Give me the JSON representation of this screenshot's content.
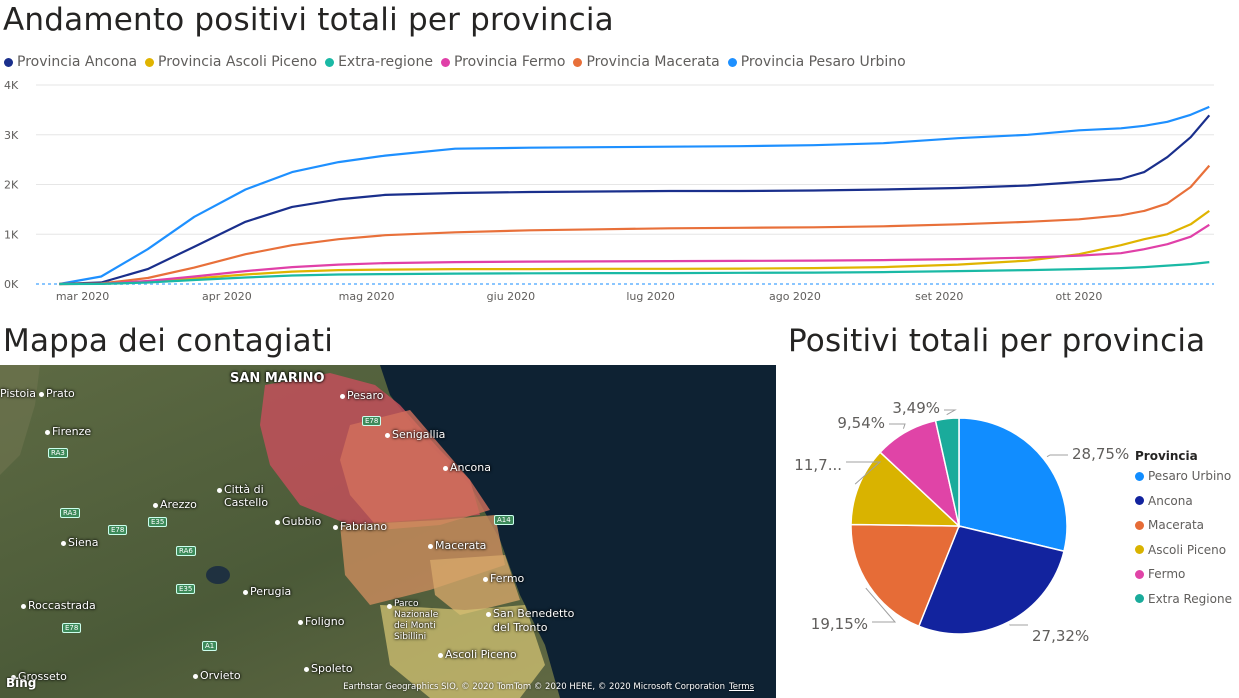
{
  "line_chart": {
    "title": "Andamento positivi totali per provincia",
    "legend": [
      {
        "label": "Provincia Ancona",
        "color": "#1a2f8c"
      },
      {
        "label": "Provincia Ascoli Piceno",
        "color": "#e0b400"
      },
      {
        "label": "Extra-regione",
        "color": "#1ab9a5"
      },
      {
        "label": "Provincia Fermo",
        "color": "#e040a8"
      },
      {
        "label": "Provincia Macerata",
        "color": "#e8703a"
      },
      {
        "label": "Provincia Pesaro Urbino",
        "color": "#1e90ff"
      }
    ],
    "y_ticks": [
      "0K",
      "1K",
      "2K",
      "3K",
      "4K"
    ],
    "x_ticks": [
      "mar 2020",
      "apr 2020",
      "mag 2020",
      "giu 2020",
      "lug 2020",
      "ago 2020",
      "set 2020",
      "ott 2020"
    ]
  },
  "map": {
    "title": "Mappa dei contagiati",
    "attribution": "Earthstar Geographics SIO, © 2020 TomTom © 2020 HERE, © 2020 Microsoft Corporation",
    "terms": "Terms",
    "logo": "Bing",
    "places": [
      {
        "name": "SAN MARINO",
        "style": "big"
      },
      {
        "name": "Pesaro"
      },
      {
        "name": "Prato"
      },
      {
        "name": "Pistoia"
      },
      {
        "name": "Firenze"
      },
      {
        "name": "Senigallia"
      },
      {
        "name": "Ancona"
      },
      {
        "name": "Arezzo"
      },
      {
        "name": "Città di Castello"
      },
      {
        "name": "Gubbio"
      },
      {
        "name": "Fabriano"
      },
      {
        "name": "Siena"
      },
      {
        "name": "Macerata"
      },
      {
        "name": "Fermo"
      },
      {
        "name": "Perugia"
      },
      {
        "name": "Roccastrada"
      },
      {
        "name": "Foligno"
      },
      {
        "name": "Parco Nazionale dei Monti Sibillini"
      },
      {
        "name": "San Benedetto del Tronto"
      },
      {
        "name": "Ascoli Piceno"
      },
      {
        "name": "Grosseto"
      },
      {
        "name": "Orvieto"
      },
      {
        "name": "Spoleto"
      }
    ],
    "roads": [
      "RA3",
      "RA3",
      "E78",
      "E35",
      "RA6",
      "E35",
      "E78",
      "A1",
      "A14",
      "E78"
    ]
  },
  "pie": {
    "title": "Positivi totali per provincia",
    "legend_title": "Provincia",
    "labels": [
      "28,75%",
      "27,32%",
      "19,15%",
      "11,7...",
      "9,54%",
      "3,49%"
    ]
  },
  "chart_data": [
    {
      "type": "line",
      "title": "Andamento positivi totali per provincia",
      "xlabel": "",
      "ylabel": "",
      "ylim": [
        0,
        4000
      ],
      "x": [
        "2020-02-25",
        "2020-03-05",
        "2020-03-15",
        "2020-03-25",
        "2020-04-05",
        "2020-04-15",
        "2020-04-25",
        "2020-05-05",
        "2020-05-20",
        "2020-06-05",
        "2020-06-20",
        "2020-07-05",
        "2020-07-20",
        "2020-08-05",
        "2020-08-20",
        "2020-09-05",
        "2020-09-20",
        "2020-10-01",
        "2020-10-10",
        "2020-10-15",
        "2020-10-20",
        "2020-10-25",
        "2020-10-29"
      ],
      "series": [
        {
          "name": "Provincia Pesaro Urbino",
          "color": "#1e90ff",
          "values": [
            0,
            150,
            700,
            1350,
            1900,
            2250,
            2450,
            2580,
            2720,
            2740,
            2750,
            2760,
            2770,
            2790,
            2830,
            2930,
            3000,
            3090,
            3130,
            3180,
            3260,
            3400,
            3560
          ]
        },
        {
          "name": "Provincia Ancona",
          "color": "#1a2f8c",
          "values": [
            0,
            30,
            300,
            750,
            1250,
            1550,
            1700,
            1790,
            1830,
            1850,
            1860,
            1870,
            1870,
            1880,
            1900,
            1930,
            1980,
            2050,
            2110,
            2250,
            2550,
            2950,
            3390
          ]
        },
        {
          "name": "Provincia Macerata",
          "color": "#e8703a",
          "values": [
            0,
            10,
            120,
            330,
            600,
            780,
            900,
            980,
            1040,
            1080,
            1100,
            1120,
            1130,
            1140,
            1160,
            1200,
            1250,
            1300,
            1380,
            1470,
            1620,
            1950,
            2380
          ]
        },
        {
          "name": "Provincia Ascoli Piceno",
          "color": "#e0b400",
          "values": [
            0,
            5,
            40,
            110,
            190,
            250,
            280,
            290,
            300,
            300,
            305,
            305,
            310,
            320,
            340,
            390,
            470,
            600,
            780,
            900,
            1000,
            1200,
            1470
          ]
        },
        {
          "name": "Provincia Fermo",
          "color": "#e040a8",
          "values": [
            0,
            5,
            60,
            150,
            260,
            340,
            390,
            420,
            440,
            450,
            455,
            460,
            465,
            470,
            480,
            500,
            530,
            570,
            620,
            700,
            800,
            950,
            1190
          ]
        },
        {
          "name": "Extra-regione",
          "color": "#1ab9a5",
          "values": [
            0,
            3,
            30,
            80,
            130,
            170,
            190,
            200,
            210,
            215,
            220,
            220,
            225,
            230,
            240,
            260,
            280,
            300,
            320,
            340,
            370,
            400,
            440
          ]
        }
      ]
    },
    {
      "type": "pie",
      "title": "Positivi totali per provincia",
      "legend_position": "right",
      "slices": [
        {
          "name": "Pesaro Urbino",
          "value": 28.75,
          "color": "#118dff"
        },
        {
          "name": "Ancona",
          "value": 27.32,
          "color": "#12239e"
        },
        {
          "name": "Macerata",
          "value": 19.15,
          "color": "#e66c37"
        },
        {
          "name": "Ascoli Piceno",
          "value": 11.75,
          "color": "#d9b300"
        },
        {
          "name": "Fermo",
          "value": 9.54,
          "color": "#e044a7"
        },
        {
          "name": "Extra Regione",
          "value": 3.49,
          "color": "#1aab9b"
        }
      ]
    }
  ]
}
